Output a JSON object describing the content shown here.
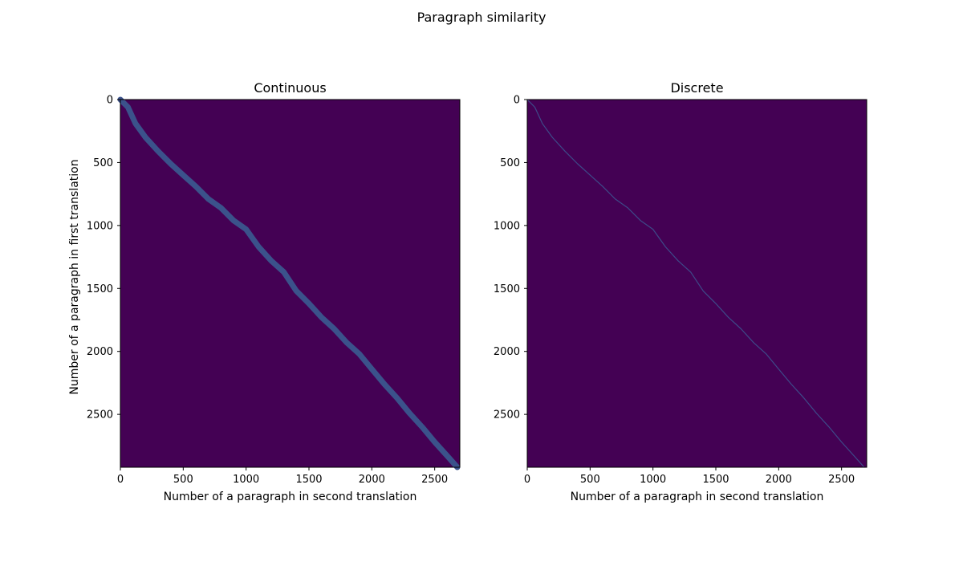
{
  "figure": {
    "suptitle": "Paragraph similarity"
  },
  "colors": {
    "background": "#440154",
    "diagonal_continuous": "#3b528b",
    "diagonal_discrete": "#3e4a89"
  },
  "chart_data": [
    {
      "type": "heatmap",
      "title": "Continuous",
      "xlabel": "Number of a paragraph in second translation",
      "ylabel": "Number of a paragraph in first translation",
      "xlim": [
        0,
        2700
      ],
      "ylim": [
        2920,
        0
      ],
      "xticks": [
        0,
        500,
        1000,
        1500,
        2000,
        2500
      ],
      "yticks": [
        0,
        500,
        1000,
        1500,
        2000,
        2500
      ],
      "colormap": "viridis",
      "diagonal_band": "wide",
      "diagonal_path": [
        [
          0,
          0
        ],
        [
          60,
          60
        ],
        [
          120,
          190
        ],
        [
          200,
          300
        ],
        [
          300,
          410
        ],
        [
          400,
          510
        ],
        [
          500,
          600
        ],
        [
          600,
          690
        ],
        [
          700,
          790
        ],
        [
          800,
          860
        ],
        [
          900,
          960
        ],
        [
          1000,
          1030
        ],
        [
          1100,
          1170
        ],
        [
          1200,
          1280
        ],
        [
          1300,
          1370
        ],
        [
          1400,
          1520
        ],
        [
          1500,
          1620
        ],
        [
          1600,
          1730
        ],
        [
          1700,
          1820
        ],
        [
          1800,
          1930
        ],
        [
          1900,
          2020
        ],
        [
          2000,
          2140
        ],
        [
          2100,
          2260
        ],
        [
          2200,
          2370
        ],
        [
          2300,
          2490
        ],
        [
          2400,
          2600
        ],
        [
          2500,
          2720
        ],
        [
          2600,
          2830
        ],
        [
          2680,
          2920
        ]
      ]
    },
    {
      "type": "heatmap",
      "title": "Discrete",
      "xlabel": "Number of a paragraph in second translation",
      "ylabel": "",
      "xlim": [
        0,
        2700
      ],
      "ylim": [
        2920,
        0
      ],
      "xticks": [
        0,
        500,
        1000,
        1500,
        2000,
        2500
      ],
      "yticks": [
        0,
        500,
        1000,
        1500,
        2000,
        2500
      ],
      "colormap": "viridis",
      "diagonal_band": "thin",
      "diagonal_path": [
        [
          0,
          0
        ],
        [
          60,
          60
        ],
        [
          120,
          190
        ],
        [
          200,
          300
        ],
        [
          300,
          410
        ],
        [
          400,
          510
        ],
        [
          500,
          600
        ],
        [
          600,
          690
        ],
        [
          700,
          790
        ],
        [
          800,
          860
        ],
        [
          900,
          960
        ],
        [
          1000,
          1030
        ],
        [
          1100,
          1170
        ],
        [
          1200,
          1280
        ],
        [
          1300,
          1370
        ],
        [
          1400,
          1520
        ],
        [
          1500,
          1620
        ],
        [
          1600,
          1730
        ],
        [
          1700,
          1820
        ],
        [
          1800,
          1930
        ],
        [
          1900,
          2020
        ],
        [
          2000,
          2140
        ],
        [
          2100,
          2260
        ],
        [
          2200,
          2370
        ],
        [
          2300,
          2490
        ],
        [
          2400,
          2600
        ],
        [
          2500,
          2720
        ],
        [
          2600,
          2830
        ],
        [
          2680,
          2920
        ]
      ]
    }
  ]
}
